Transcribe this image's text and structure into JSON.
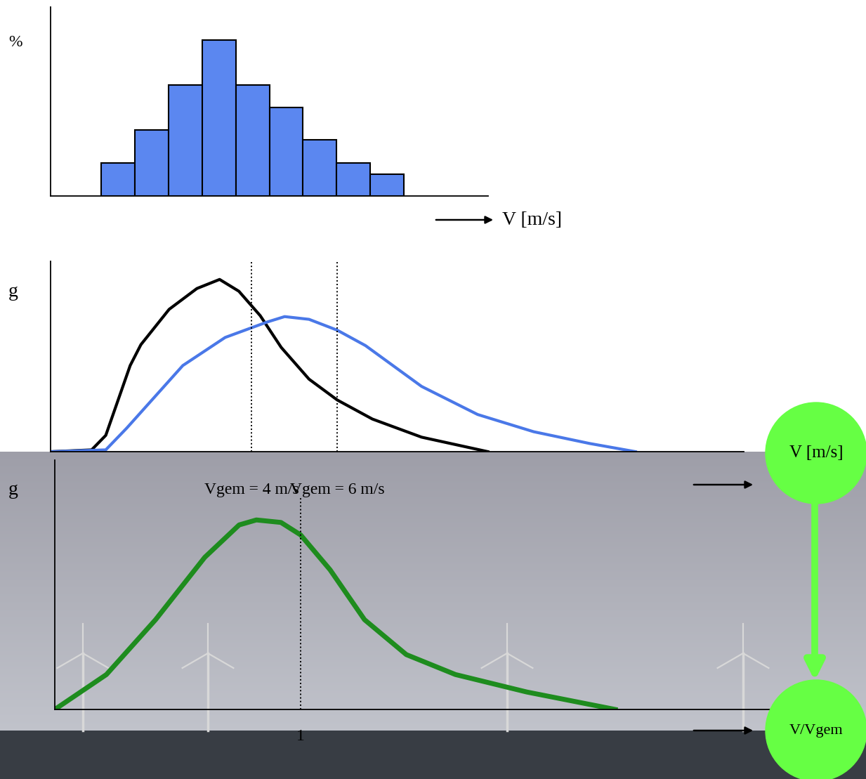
{
  "chart_data": [
    {
      "type": "histogram",
      "x_label": "V [m/s]",
      "y_label": "%",
      "bins": [
        1.5,
        2.5,
        3.5,
        4.5,
        5.5,
        6.5,
        7.5,
        8.5,
        9.5,
        10.5
      ],
      "values": [
        4.9,
        9.8,
        16.4,
        23.1,
        16.4,
        13.1,
        8.3,
        4.9,
        3.2
      ],
      "color": "#5b87f0",
      "xlim": [
        0,
        13
      ],
      "ylim": [
        0,
        28
      ],
      "xticks": [],
      "yticks": [],
      "tick_labels": false
    },
    {
      "type": "line",
      "x_label": "V [m/s]",
      "y_label": "g",
      "series": [
        {
          "color": "#000000",
          "x": [
            -0.69,
            0.26,
            0.59,
            1.16,
            1.41,
            2.07,
            2.72,
            3.25,
            3.7,
            4.2,
            4.69,
            5.34,
            6.0,
            6.82,
            7.97,
            9.52
          ],
          "values": [
            0,
            0.002,
            0.018,
            0.095,
            0.118,
            0.157,
            0.18,
            0.19,
            0.177,
            0.15,
            0.115,
            0.08,
            0.057,
            0.036,
            0.016,
            0
          ]
        },
        {
          "color": "#4a78e8",
          "x": [
            -0.69,
            0.59,
            1.08,
            2.39,
            3.38,
            4.36,
            4.77,
            5.34,
            6.0,
            6.66,
            7.97,
            9.28,
            10.59,
            11.9,
            12.97
          ],
          "values": [
            0,
            0.002,
            0.026,
            0.095,
            0.126,
            0.143,
            0.149,
            0.146,
            0.134,
            0.117,
            0.072,
            0.041,
            0.022,
            0.009,
            0
          ]
        }
      ],
      "annotations": [
        {
          "x": 4,
          "text": "Vgem = 4 m/s"
        },
        {
          "x": 6,
          "text": "Vgem = 6 m/s"
        }
      ],
      "xlim": [
        -0.7,
        15.5
      ],
      "ylim": [
        0,
        0.21
      ],
      "xticks": [],
      "yticks": [],
      "tick_labels": false
    },
    {
      "type": "line",
      "x_label": "V/Vgem",
      "y_label": "g",
      "x": [
        0,
        0.21,
        0.41,
        0.61,
        0.75,
        0.82,
        0.92,
        1.0,
        1.12,
        1.26,
        1.43,
        1.63,
        1.92,
        2.28
      ],
      "values": [
        0,
        0.14,
        0.36,
        0.61,
        0.74,
        0.76,
        0.75,
        0.7,
        0.56,
        0.36,
        0.22,
        0.14,
        0.07,
        0
      ],
      "color": "#1e8c1e",
      "xlim": [
        0,
        3
      ],
      "ylim": [
        0,
        1
      ],
      "xticks": [
        1
      ],
      "yticks": [],
      "tick_labels": "x"
    }
  ]
}
